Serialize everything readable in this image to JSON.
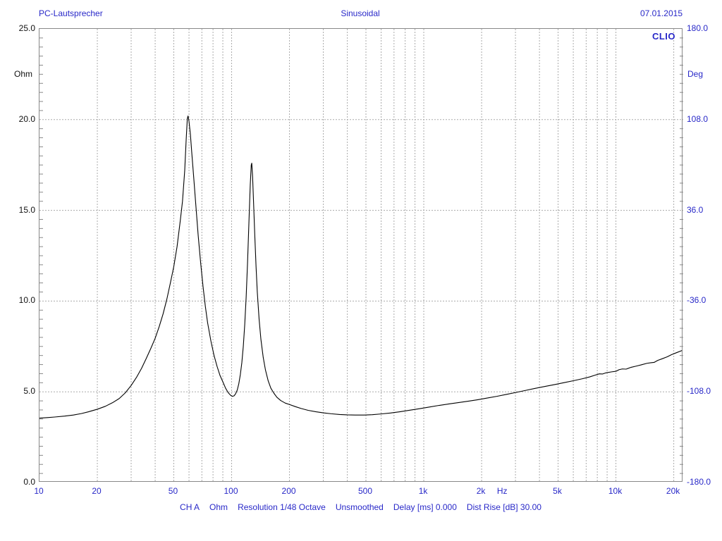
{
  "header": {
    "title": "PC-Lautsprecher",
    "measurement_type": "Sinusoidal",
    "date": "07.01.2015"
  },
  "branding": {
    "logo": "CLIO"
  },
  "footer": {
    "items": [
      "CH A",
      "Ohm",
      "Resolution 1/48 Octave",
      "Unsmoothed",
      "Delay [ms] 0.000",
      "Dist Rise [dB] 30.00"
    ]
  },
  "colors": {
    "accent_blue": "#2828c8",
    "left_axis_text": "#111111",
    "grid": "#aaaaaa",
    "axis_border": "#888888",
    "curve": "#000000",
    "background": "#ffffff"
  },
  "chart_data": {
    "type": "line",
    "title": "PC-Lautsprecher — Impedance magnitude vs frequency (CLIO Sinusoidal measurement)",
    "legend_position": "none",
    "grid": true,
    "x_axis": {
      "label": "Hz",
      "scale": "log",
      "min": 10,
      "max": 22400,
      "tick_values": [
        10,
        20,
        50,
        100,
        200,
        500,
        1000,
        2000,
        5000,
        10000,
        20000
      ],
      "tick_labels": [
        "10",
        "20",
        "50",
        "100",
        "200",
        "500",
        "1k",
        "2k",
        "5k",
        "10k",
        "20k"
      ],
      "unit_label_value": 2580,
      "gridline_values": [
        20,
        30,
        40,
        50,
        60,
        70,
        80,
        90,
        100,
        200,
        300,
        400,
        500,
        600,
        700,
        800,
        900,
        1000,
        2000,
        3000,
        4000,
        5000,
        6000,
        7000,
        8000,
        9000,
        10000,
        20000
      ]
    },
    "y_left": {
      "label": "Ohm",
      "min": 0,
      "max": 25,
      "tick_values": [
        25,
        20,
        15,
        10,
        5,
        0
      ],
      "tick_labels": [
        "25.0",
        "20.0",
        "15.0",
        "10.0",
        "5.0",
        "0.0"
      ],
      "gridline_values": [
        5,
        10,
        15,
        20
      ],
      "minor_tick_step": 0.5
    },
    "y_right": {
      "label": "Deg",
      "min": -180,
      "max": 180,
      "tick_values": [
        180,
        108,
        36,
        -36,
        -108,
        -180
      ],
      "tick_labels": [
        "180.0",
        "108.0",
        "36.0",
        "-36.0",
        "-108.0",
        "-180.0"
      ]
    },
    "series": [
      {
        "name": "CH A impedance (Ohm)",
        "color": "#000000",
        "points": [
          [
            10,
            3.55
          ],
          [
            11,
            3.58
          ],
          [
            12,
            3.61
          ],
          [
            13.5,
            3.66
          ],
          [
            15,
            3.72
          ],
          [
            16.5,
            3.8
          ],
          [
            18,
            3.9
          ],
          [
            20,
            4.04
          ],
          [
            22,
            4.2
          ],
          [
            24,
            4.4
          ],
          [
            26,
            4.63
          ],
          [
            28,
            4.95
          ],
          [
            30,
            5.35
          ],
          [
            32,
            5.8
          ],
          [
            34,
            6.3
          ],
          [
            36,
            6.85
          ],
          [
            38,
            7.4
          ],
          [
            40,
            7.95
          ],
          [
            42,
            8.6
          ],
          [
            44,
            9.3
          ],
          [
            46,
            10.1
          ],
          [
            48,
            11.0
          ],
          [
            50,
            11.9
          ],
          [
            52,
            13.0
          ],
          [
            54,
            14.4
          ],
          [
            55.5,
            15.5
          ],
          [
            57,
            17.2
          ],
          [
            58,
            18.9
          ],
          [
            58.8,
            20.05
          ],
          [
            59.3,
            20.2
          ],
          [
            60,
            19.9
          ],
          [
            61,
            19.2
          ],
          [
            62,
            18.2
          ],
          [
            63.5,
            16.8
          ],
          [
            65,
            15.4
          ],
          [
            67,
            13.6
          ],
          [
            69,
            12.1
          ],
          [
            71,
            10.8
          ],
          [
            73,
            9.7
          ],
          [
            75,
            8.8
          ],
          [
            78,
            7.8
          ],
          [
            81,
            7.0
          ],
          [
            84,
            6.4
          ],
          [
            87,
            5.9
          ],
          [
            90,
            5.55
          ],
          [
            93,
            5.2
          ],
          [
            96,
            4.95
          ],
          [
            99,
            4.8
          ],
          [
            101,
            4.75
          ],
          [
            103,
            4.78
          ],
          [
            105,
            4.9
          ],
          [
            107,
            5.1
          ],
          [
            109,
            5.45
          ],
          [
            111,
            5.95
          ],
          [
            113,
            6.6
          ],
          [
            115,
            7.5
          ],
          [
            117,
            8.7
          ],
          [
            119,
            10.2
          ],
          [
            121,
            12.1
          ],
          [
            123,
            14.3
          ],
          [
            125,
            16.4
          ],
          [
            126.5,
            17.5
          ],
          [
            127.3,
            17.6
          ],
          [
            128.5,
            16.9
          ],
          [
            130,
            15.5
          ],
          [
            132,
            13.6
          ],
          [
            134,
            11.9
          ],
          [
            136,
            10.5
          ],
          [
            139,
            9.0
          ],
          [
            142,
            7.9
          ],
          [
            146,
            6.9
          ],
          [
            150,
            6.2
          ],
          [
            155,
            5.6
          ],
          [
            160,
            5.2
          ],
          [
            166,
            4.92
          ],
          [
            172,
            4.7
          ],
          [
            180,
            4.52
          ],
          [
            190,
            4.38
          ],
          [
            200,
            4.3
          ],
          [
            215,
            4.18
          ],
          [
            230,
            4.08
          ],
          [
            250,
            3.98
          ],
          [
            275,
            3.9
          ],
          [
            300,
            3.84
          ],
          [
            330,
            3.79
          ],
          [
            365,
            3.75
          ],
          [
            400,
            3.73
          ],
          [
            440,
            3.72
          ],
          [
            490,
            3.72
          ],
          [
            540,
            3.74
          ],
          [
            600,
            3.78
          ],
          [
            670,
            3.83
          ],
          [
            750,
            3.9
          ],
          [
            840,
            3.98
          ],
          [
            950,
            4.07
          ],
          [
            1070,
            4.16
          ],
          [
            1200,
            4.25
          ],
          [
            1350,
            4.33
          ],
          [
            1500,
            4.4
          ],
          [
            1700,
            4.48
          ],
          [
            1900,
            4.56
          ],
          [
            2150,
            4.66
          ],
          [
            2400,
            4.75
          ],
          [
            2700,
            4.86
          ],
          [
            3000,
            4.96
          ],
          [
            3400,
            5.08
          ],
          [
            3800,
            5.19
          ],
          [
            4300,
            5.3
          ],
          [
            4800,
            5.4
          ],
          [
            5400,
            5.51
          ],
          [
            6000,
            5.61
          ],
          [
            6700,
            5.72
          ],
          [
            7300,
            5.82
          ],
          [
            7800,
            5.92
          ],
          [
            8200,
            5.99
          ],
          [
            8500,
            5.98
          ],
          [
            8900,
            6.05
          ],
          [
            9500,
            6.1
          ],
          [
            10000,
            6.13
          ],
          [
            10400,
            6.22
          ],
          [
            10800,
            6.26
          ],
          [
            11300,
            6.25
          ],
          [
            12000,
            6.35
          ],
          [
            12800,
            6.42
          ],
          [
            13600,
            6.49
          ],
          [
            14500,
            6.57
          ],
          [
            15200,
            6.6
          ],
          [
            15800,
            6.62
          ],
          [
            16500,
            6.73
          ],
          [
            17500,
            6.83
          ],
          [
            18500,
            6.93
          ],
          [
            19500,
            7.05
          ],
          [
            20600,
            7.15
          ],
          [
            22000,
            7.27
          ]
        ]
      }
    ],
    "annotations": {
      "peak1": {
        "freq_hz": 59.3,
        "ohm": 20.2
      },
      "peak2": {
        "freq_hz": 127.3,
        "ohm": 17.6
      },
      "dip_between_peaks": {
        "freq_hz": 101,
        "ohm": 4.75
      },
      "minimum": {
        "freq_hz": 460,
        "ohm": 3.72
      }
    }
  }
}
